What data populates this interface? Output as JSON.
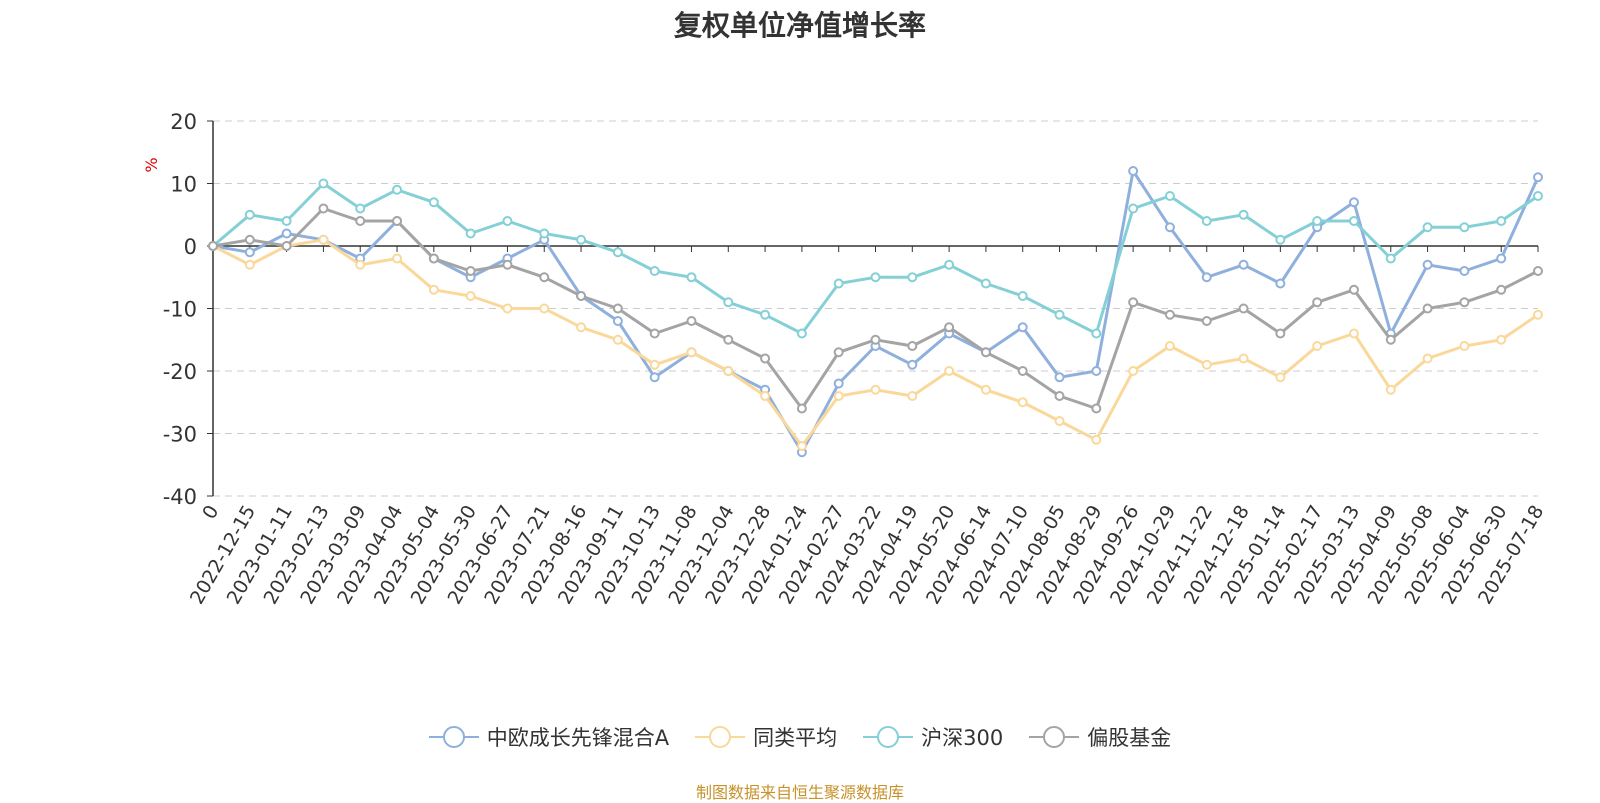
{
  "chart_data": {
    "type": "line",
    "title": "复权单位净值增长率",
    "ylabel": "%",
    "ylim": [
      -40,
      20
    ],
    "yticks": [
      20,
      10,
      0,
      -10,
      -20,
      -30,
      -40
    ],
    "grid": true,
    "legend_position": "bottom",
    "x_tick_labels": [
      "0",
      "2022-12-15",
      "2023-01-11",
      "2023-02-13",
      "2023-03-09",
      "2023-04-04",
      "2023-05-04",
      "2023-05-30",
      "2023-06-27",
      "2023-07-21",
      "2023-08-16",
      "2023-09-11",
      "2023-10-13",
      "2023-11-08",
      "2023-12-04",
      "2023-12-28",
      "2024-01-24",
      "2024-02-27",
      "2024-03-22",
      "2024-04-19",
      "2024-05-20",
      "2024-06-14",
      "2024-07-10",
      "2024-08-05",
      "2024-08-29",
      "2024-09-26",
      "2024-10-29",
      "2024-11-22",
      "2024-12-18",
      "2025-01-14",
      "2025-02-17",
      "2025-03-13",
      "2025-04-09",
      "2025-05-08",
      "2025-06-04",
      "2025-06-30",
      "2025-07-18"
    ],
    "series": [
      {
        "name": "中欧成长先锋混合A",
        "color": "#8fb0dd",
        "values": [
          0,
          -1,
          2,
          1,
          -2,
          4,
          -2,
          -5,
          -2,
          1,
          -8,
          -12,
          -21,
          -17,
          -20,
          -23,
          -33,
          -22,
          -16,
          -19,
          -14,
          -17,
          -13,
          -21,
          -20,
          12,
          3,
          -5,
          -3,
          -6,
          3,
          7,
          -14,
          -3,
          -4,
          -2,
          11
        ]
      },
      {
        "name": "同类平均",
        "color": "#fad89a",
        "values": [
          0,
          -3,
          0,
          1,
          -3,
          -2,
          -7,
          -8,
          -10,
          -10,
          -13,
          -15,
          -19,
          -17,
          -20,
          -24,
          -32,
          -24,
          -23,
          -24,
          -20,
          -23,
          -25,
          -28,
          -31,
          -20,
          -16,
          -19,
          -18,
          -21,
          -16,
          -14,
          -23,
          -18,
          -16,
          -15,
          -11
        ]
      },
      {
        "name": "沪深300",
        "color": "#84d0d6",
        "values": [
          0,
          5,
          4,
          10,
          6,
          9,
          7,
          2,
          4,
          2,
          1,
          -1,
          -4,
          -5,
          -9,
          -11,
          -14,
          -6,
          -5,
          -5,
          -3,
          -6,
          -8,
          -11,
          -14,
          6,
          8,
          4,
          5,
          1,
          4,
          4,
          -2,
          3,
          3,
          4,
          8
        ]
      },
      {
        "name": "偏股基金",
        "color": "#a4a4a4",
        "values": [
          0,
          1,
          0,
          6,
          4,
          4,
          -2,
          -4,
          -3,
          -5,
          -8,
          -10,
          -14,
          -12,
          -15,
          -18,
          -26,
          -17,
          -15,
          -16,
          -13,
          -17,
          -20,
          -24,
          -26,
          -9,
          -11,
          -12,
          -10,
          -14,
          -9,
          -7,
          -15,
          -10,
          -9,
          -7,
          -4
        ]
      }
    ]
  },
  "source_text": "制图数据来自恒生聚源数据库"
}
